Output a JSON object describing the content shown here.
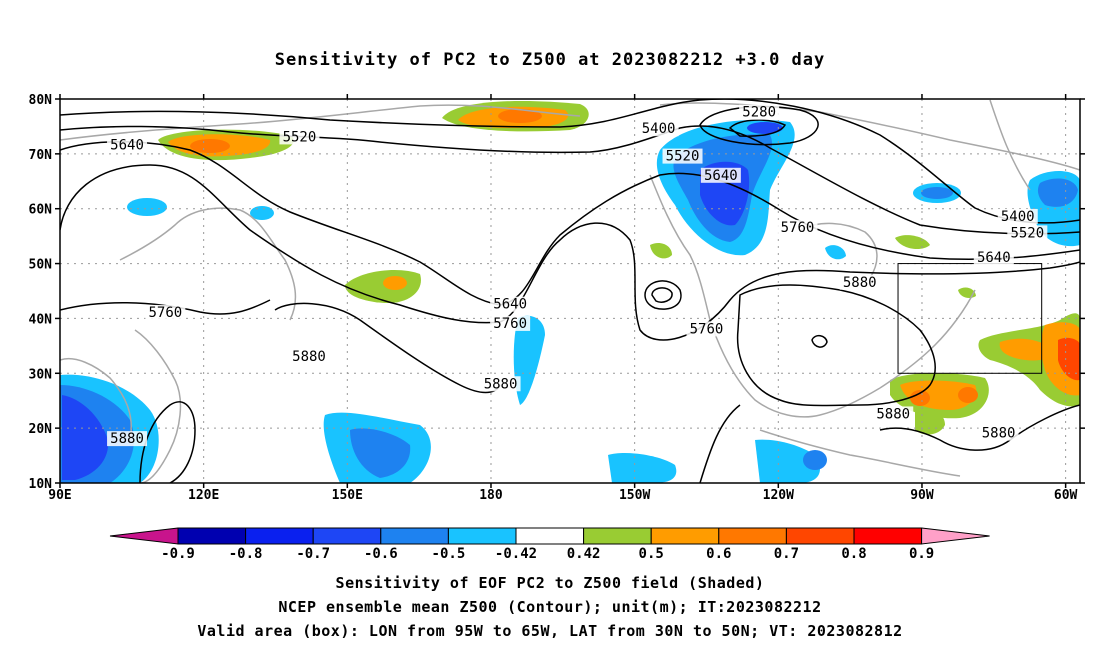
{
  "title": "Sensitivity of PC2 to Z500 at 2023082212 +3.0 day",
  "map": {
    "lon_range": [
      90,
      303
    ],
    "lat_range": [
      10,
      80
    ],
    "lat_ticks": [
      {
        "lat": 80,
        "label": "80N"
      },
      {
        "lat": 70,
        "label": "70N"
      },
      {
        "lat": 60,
        "label": "60N"
      },
      {
        "lat": 50,
        "label": "50N"
      },
      {
        "lat": 40,
        "label": "40N"
      },
      {
        "lat": 30,
        "label": "30N"
      },
      {
        "lat": 20,
        "label": "20N"
      },
      {
        "lat": 10,
        "label": "10N"
      }
    ],
    "lon_ticks": [
      {
        "lon": 90,
        "label": "90E"
      },
      {
        "lon": 120,
        "label": "120E"
      },
      {
        "lon": 150,
        "label": "150E"
      },
      {
        "lon": 180,
        "label": "180"
      },
      {
        "lon": 210,
        "label": "150W"
      },
      {
        "lon": 240,
        "label": "120W"
      },
      {
        "lon": 270,
        "label": "90W"
      },
      {
        "lon": 300,
        "label": "60W"
      }
    ],
    "valid_box": {
      "lon_west": 265,
      "lon_east": 295,
      "lat_south": 30,
      "lat_north": 50
    },
    "contour_labels": [
      {
        "text": "5280",
        "lon": 236,
        "lat": 77.5
      },
      {
        "text": "5400",
        "lon": 215,
        "lat": 74.5
      },
      {
        "text": "5400",
        "lon": 290,
        "lat": 58.5
      },
      {
        "text": "5520",
        "lon": 140,
        "lat": 73
      },
      {
        "text": "5520",
        "lon": 220,
        "lat": 69.5
      },
      {
        "text": "5520",
        "lon": 292,
        "lat": 55.5
      },
      {
        "text": "5640",
        "lon": 104,
        "lat": 71.5
      },
      {
        "text": "5640",
        "lon": 228,
        "lat": 66
      },
      {
        "text": "5640",
        "lon": 184,
        "lat": 42.5
      },
      {
        "text": "5640",
        "lon": 285,
        "lat": 51
      },
      {
        "text": "5760",
        "lon": 244,
        "lat": 56.5
      },
      {
        "text": "5760",
        "lon": 112,
        "lat": 41
      },
      {
        "text": "5760",
        "lon": 184,
        "lat": 39
      },
      {
        "text": "5760",
        "lon": 225,
        "lat": 38
      },
      {
        "text": "5880",
        "lon": 257,
        "lat": 46.5
      },
      {
        "text": "5880",
        "lon": 142,
        "lat": 33
      },
      {
        "text": "5880",
        "lon": 182,
        "lat": 28
      },
      {
        "text": "5880",
        "lon": 264,
        "lat": 22.5
      },
      {
        "text": "5880",
        "lon": 286,
        "lat": 19
      },
      {
        "text": "5880",
        "lon": 104,
        "lat": 18
      }
    ]
  },
  "colorbar": {
    "labels": [
      "-0.9",
      "-0.8",
      "-0.7",
      "-0.6",
      "-0.5",
      "-0.42",
      "0.42",
      "0.5",
      "0.6",
      "0.7",
      "0.8",
      "0.9"
    ],
    "colors": [
      "#0000b0",
      "#0a20ef",
      "#1e46f5",
      "#1e82f0",
      "#19c3ff",
      "#ffffff",
      "#99cc33",
      "#ff9c00",
      "#ff7800",
      "#ff4600",
      "#ff0000"
    ],
    "left_tip_color": "#c8148c",
    "right_tip_color": "#ffa0c8"
  },
  "captions": {
    "line1": "Sensitivity of EOF PC2 to Z500 field (Shaded)",
    "line2": "NCEP ensemble mean Z500 (Contour); unit(m); IT:2023082212",
    "line3": "Valid area (box): LON from 95W to 65W, LAT from 30N to 50N; VT: 2023082812"
  }
}
